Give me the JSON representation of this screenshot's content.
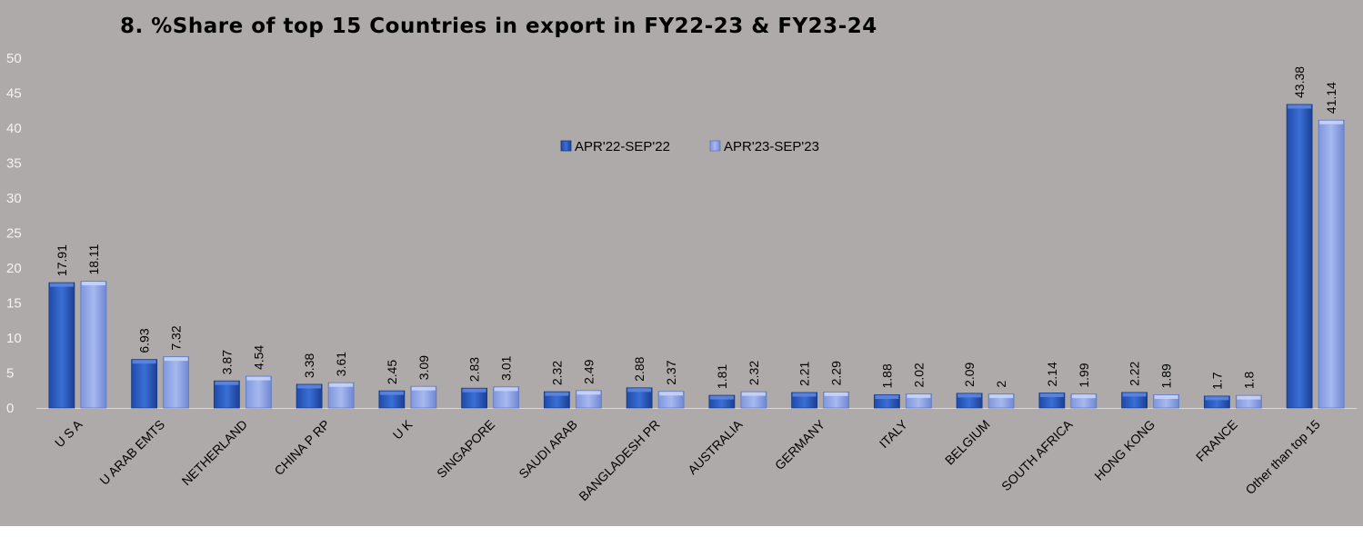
{
  "chart_data": {
    "type": "bar",
    "title": "8. %Share of top 15 Countries in export in FY22-23 & FY23-24",
    "xlabel": "",
    "ylabel": "",
    "ylim": [
      0,
      50
    ],
    "yticks": [
      0,
      5,
      10,
      15,
      20,
      25,
      30,
      35,
      40,
      45,
      50
    ],
    "grid": false,
    "legend_position": "top-center",
    "categories": [
      "U S A",
      "U ARAB EMTS",
      "NETHERLAND",
      "CHINA P RP",
      "U K",
      "SINGAPORE",
      "SAUDI ARAB",
      "BANGLADESH PR",
      "AUSTRALIA",
      "GERMANY",
      "ITALY",
      "BELGIUM",
      "SOUTH AFRICA",
      "HONG KONG",
      "FRANCE",
      "Other than top 15"
    ],
    "series": [
      {
        "name": "APR'22-SEP'22",
        "color": "#2e5fc4",
        "values": [
          17.91,
          6.93,
          3.87,
          3.38,
          2.45,
          2.83,
          2.32,
          2.88,
          1.81,
          2.21,
          1.88,
          2.09,
          2.14,
          2.22,
          1.7,
          43.38
        ],
        "labels": [
          "17.91",
          "6.93",
          "3.87",
          "3.38",
          "2.45",
          "2.83",
          "2.32",
          "2.88",
          "1.81",
          "2.21",
          "1.88",
          "2.09",
          "2.14",
          "2.22",
          "1.7",
          "43.38"
        ]
      },
      {
        "name": "APR'23-SEP'23",
        "color": "#8ea4e6",
        "values": [
          18.11,
          7.32,
          4.54,
          3.61,
          3.09,
          3.01,
          2.49,
          2.37,
          2.32,
          2.29,
          2.02,
          2,
          1.99,
          1.89,
          1.8,
          41.14
        ],
        "labels": [
          "18.11",
          "7.32",
          "4.54",
          "3.61",
          "3.09",
          "3.01",
          "2.49",
          "2.37",
          "2.32",
          "2.29",
          "2.02",
          "2",
          "1.99",
          "1.89",
          "1.8",
          "41.14"
        ]
      }
    ]
  }
}
